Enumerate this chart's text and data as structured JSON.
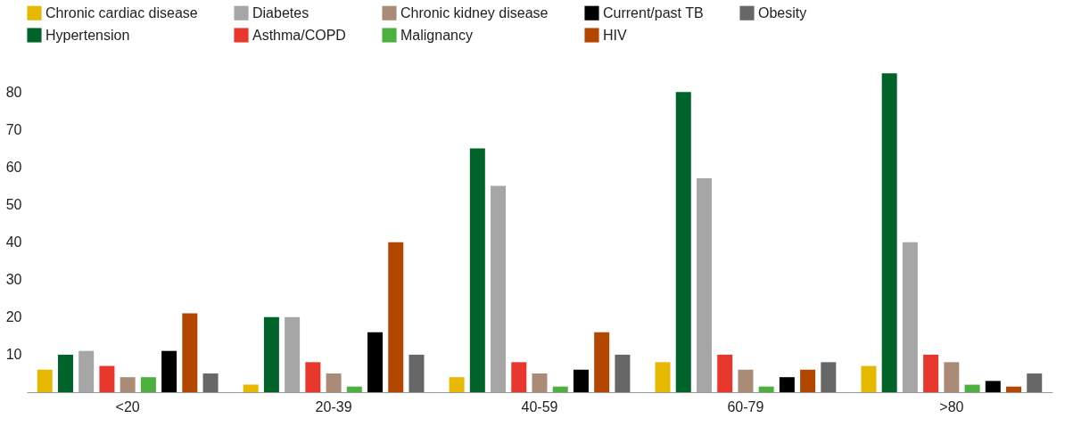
{
  "chart_data": {
    "type": "bar",
    "categories": [
      "<20",
      "20-39",
      "40-59",
      "60-79",
      ">80"
    ],
    "series": [
      {
        "name": "Chronic cardiac disease",
        "color": "#e6b800",
        "values": [
          6,
          2,
          4,
          8,
          7
        ]
      },
      {
        "name": "Hypertension",
        "color": "#00642a",
        "values": [
          10,
          20,
          65,
          80,
          85
        ]
      },
      {
        "name": "Diabetes",
        "color": "#a6a6a6",
        "values": [
          11,
          20,
          55,
          57,
          40
        ]
      },
      {
        "name": "Asthma/COPD",
        "color": "#e8372c",
        "values": [
          7,
          8,
          8,
          10,
          10
        ]
      },
      {
        "name": "Chronic kidney disease",
        "color": "#a98b78",
        "values": [
          4,
          5,
          5,
          6,
          8
        ]
      },
      {
        "name": "Malignancy",
        "color": "#4cb03f",
        "values": [
          4,
          1.5,
          1.5,
          1.5,
          2
        ]
      },
      {
        "name": "Current/past TB",
        "color": "#000000",
        "values": [
          11,
          16,
          6,
          4,
          3
        ]
      },
      {
        "name": "HIV",
        "color": "#b34700",
        "values": [
          21,
          40,
          16,
          6,
          1.5
        ]
      },
      {
        "name": "Obesity",
        "color": "#676767",
        "values": [
          5,
          10,
          10,
          8,
          5
        ]
      }
    ],
    "ylim": [
      0,
      86
    ],
    "yticks": [
      10,
      20,
      30,
      40,
      50,
      60,
      70,
      80
    ],
    "grid": false,
    "legend": "top"
  }
}
